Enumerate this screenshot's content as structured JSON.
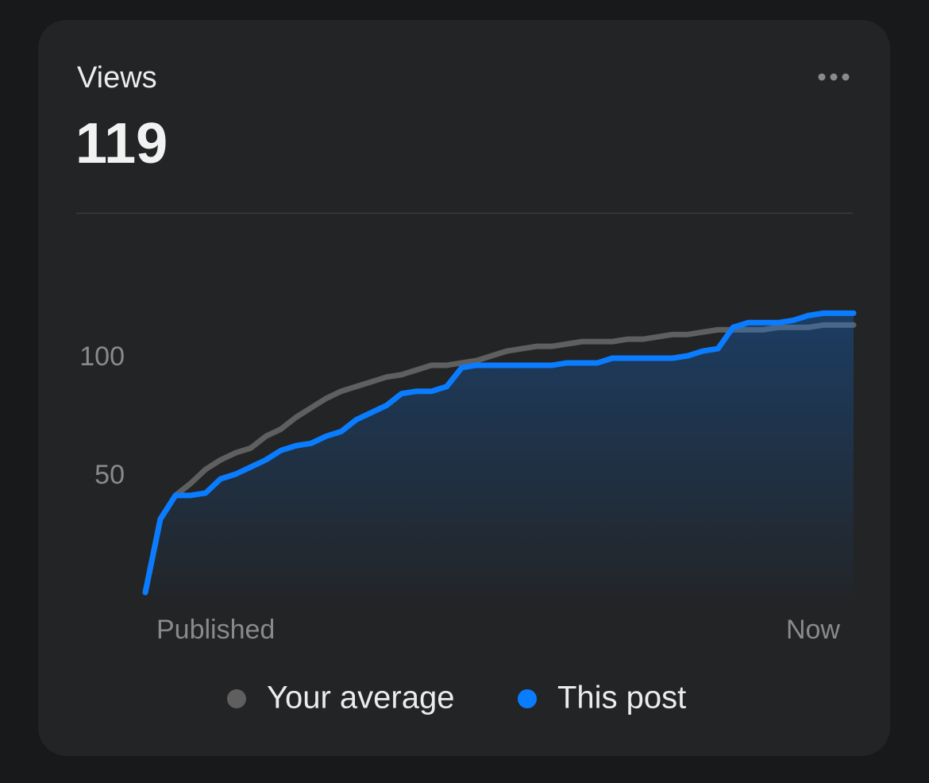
{
  "header": {
    "title": "Views",
    "value": "119"
  },
  "chart_data": {
    "type": "line",
    "categories": [
      "Published",
      null,
      null,
      null,
      null,
      null,
      null,
      null,
      null,
      null,
      null,
      null,
      null,
      null,
      null,
      null,
      null,
      null,
      null,
      null,
      null,
      null,
      null,
      null,
      null,
      null,
      null,
      null,
      null,
      null,
      null,
      null,
      null,
      null,
      null,
      null,
      null,
      null,
      null,
      null,
      null,
      null,
      null,
      null,
      null,
      null,
      null,
      "Now"
    ],
    "series": [
      {
        "name": "Your average",
        "color": "#5f5f5f",
        "values": [
          1,
          32,
          42,
          47,
          53,
          57,
          60,
          62,
          67,
          70,
          75,
          79,
          83,
          86,
          88,
          90,
          92,
          93,
          95,
          97,
          97,
          98,
          99,
          101,
          103,
          104,
          105,
          105,
          106,
          107,
          107,
          107,
          108,
          108,
          109,
          110,
          110,
          111,
          112,
          112,
          112,
          112,
          113,
          113,
          113,
          114,
          114,
          114
        ]
      },
      {
        "name": "This post",
        "color": "#0a7cff",
        "values": [
          1,
          32,
          42,
          42,
          43,
          49,
          51,
          54,
          57,
          61,
          63,
          64,
          67,
          69,
          74,
          77,
          80,
          85,
          86,
          86,
          88,
          96,
          97,
          97,
          97,
          97,
          97,
          97,
          98,
          98,
          98,
          100,
          100,
          100,
          100,
          100,
          101,
          103,
          104,
          113,
          115,
          115,
          115,
          116,
          118,
          119,
          119,
          119
        ]
      }
    ],
    "ylim": [
      0,
      150
    ],
    "yticks": [
      50,
      100
    ],
    "grid": false
  }
}
